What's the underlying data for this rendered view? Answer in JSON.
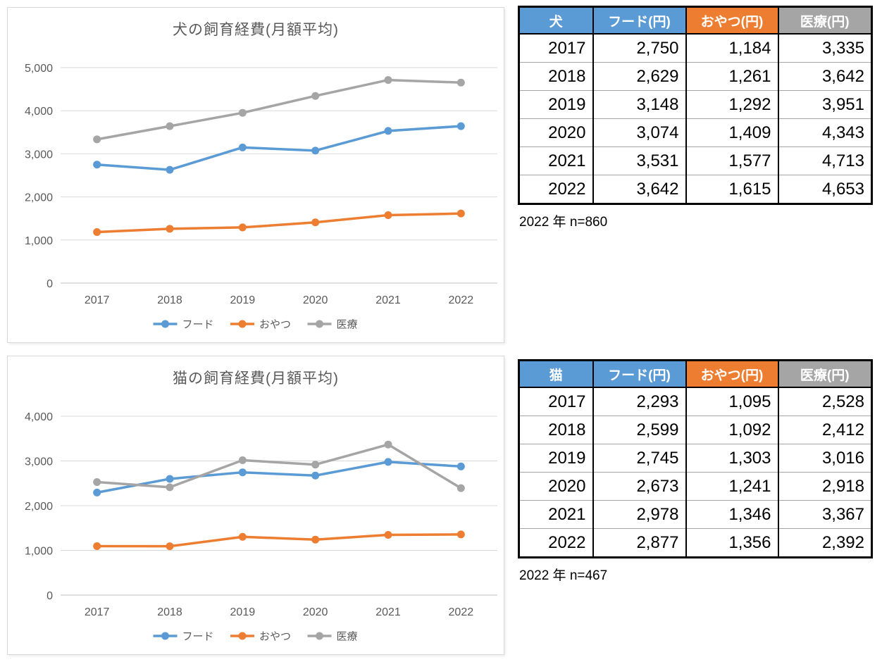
{
  "chart_data": [
    {
      "type": "line",
      "title": "犬の飼育経費(月額平均)",
      "categories": [
        "2017",
        "2018",
        "2019",
        "2020",
        "2021",
        "2022"
      ],
      "series": [
        {
          "name": "フード",
          "color": "#5B9BD5",
          "values": [
            2750,
            2629,
            3148,
            3074,
            3531,
            3642
          ]
        },
        {
          "name": "おやつ",
          "color": "#ED7D31",
          "values": [
            1184,
            1261,
            1292,
            1409,
            1577,
            1615
          ]
        },
        {
          "name": "医療",
          "color": "#A5A5A5",
          "values": [
            3335,
            3642,
            3951,
            4343,
            4713,
            4653
          ]
        }
      ],
      "xlabel": "",
      "ylabel": "",
      "ylim": [
        0,
        5000
      ],
      "ytick_step": 1000,
      "grid": true,
      "legend_position": "bottom"
    },
    {
      "type": "line",
      "title": "猫の飼育経費(月額平均)",
      "categories": [
        "2017",
        "2018",
        "2019",
        "2020",
        "2021",
        "2022"
      ],
      "series": [
        {
          "name": "フード",
          "color": "#5B9BD5",
          "values": [
            2293,
            2599,
            2745,
            2673,
            2978,
            2877
          ]
        },
        {
          "name": "おやつ",
          "color": "#ED7D31",
          "values": [
            1095,
            1092,
            1303,
            1241,
            1346,
            1356
          ]
        },
        {
          "name": "医療",
          "color": "#A5A5A5",
          "values": [
            2528,
            2412,
            3016,
            2918,
            3367,
            2392
          ]
        }
      ],
      "xlabel": "",
      "ylabel": "",
      "ylim": [
        0,
        4000
      ],
      "ytick_step": 1000,
      "grid": true,
      "legend_position": "bottom"
    }
  ],
  "tables": [
    {
      "title_cell": "犬",
      "columns": [
        "フード(円)",
        "おやつ(円)",
        "医療(円)"
      ],
      "header_colors": [
        "#5B9BD5",
        "#5B9BD5",
        "#ED7D31",
        "#A5A5A5"
      ],
      "rows": [
        [
          "2017",
          "2,750",
          "1,184",
          "3,335"
        ],
        [
          "2018",
          "2,629",
          "1,261",
          "3,642"
        ],
        [
          "2019",
          "3,148",
          "1,292",
          "3,951"
        ],
        [
          "2020",
          "3,074",
          "1,409",
          "4,343"
        ],
        [
          "2021",
          "3,531",
          "1,577",
          "4,713"
        ],
        [
          "2022",
          "3,642",
          "1,615",
          "4,653"
        ]
      ],
      "note": "2022 年 n=860"
    },
    {
      "title_cell": "猫",
      "columns": [
        "フード(円)",
        "おやつ(円)",
        "医療(円)"
      ],
      "header_colors": [
        "#5B9BD5",
        "#5B9BD5",
        "#ED7D31",
        "#A5A5A5"
      ],
      "rows": [
        [
          "2017",
          "2,293",
          "1,095",
          "2,528"
        ],
        [
          "2018",
          "2,599",
          "1,092",
          "2,412"
        ],
        [
          "2019",
          "2,745",
          "1,303",
          "3,016"
        ],
        [
          "2020",
          "2,673",
          "1,241",
          "2,918"
        ],
        [
          "2021",
          "2,978",
          "1,346",
          "3,367"
        ],
        [
          "2022",
          "2,877",
          "1,356",
          "2,392"
        ]
      ],
      "note": "2022 年 n=467"
    }
  ],
  "colors": {
    "axis_text": "#595959",
    "gridline": "#d9d9d9",
    "axis_line": "#bfbfbf",
    "title_text": "#595959",
    "header_text": "#ffffff",
    "table_border": "#000000",
    "row_divider": "#a6a6a6"
  }
}
